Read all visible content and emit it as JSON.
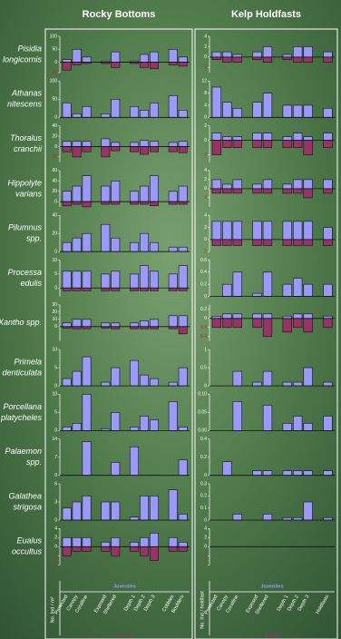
{
  "chart_data": [
    {
      "type": "bar",
      "title": "Rocky Bottoms",
      "ylabel": "No. Ind / m²",
      "series": [
        {
          "name": "Juveniles",
          "color": "#9999ff"
        },
        {
          "name": "Adults",
          "color": "#993366"
        }
      ],
      "categories": [
        "Protected",
        "Canopy",
        "Coralline",
        "Exposed",
        "Sheltered",
        "Depth 1",
        "Depth 2",
        "Depth 3",
        "Cobbles",
        "Boulders"
      ],
      "panels": [
        {
          "species": [
            "Pisidia",
            "longicornis"
          ],
          "ylim": [
            -40,
            100
          ],
          "yticks": [
            100,
            50,
            0,
            {
              "value": -40,
              "label": "40"
            }
          ],
          "values": [
            [
              10,
              50,
              20,
              5,
              40,
              5,
              30,
              40,
              50,
              20
            ],
            [
              -30,
              -10,
              -5,
              -5,
              -20,
              -5,
              -20,
              -25,
              -10,
              -15
            ]
          ]
        },
        {
          "species": [
            "Athanas",
            "nitescens"
          ],
          "ylim": [
            0,
            100
          ],
          "yticks": [
            100,
            50,
            0
          ],
          "values": [
            [
              40,
              10,
              30,
              10,
              50,
              30,
              20,
              40,
              60,
              20
            ]
          ]
        },
        {
          "species": [
            "Thoralus",
            "cranchii"
          ],
          "ylim": [
            -30,
            40
          ],
          "yticks": [
            40,
            20,
            0,
            {
              "value": -20,
              "label": "20"
            }
          ],
          "values": [
            [
              10,
              10,
              10,
              15,
              8,
              8,
              12,
              10,
              8,
              10
            ],
            [
              -10,
              -20,
              -10,
              -20,
              -8,
              -10,
              -15,
              -10,
              -10,
              -12
            ]
          ]
        },
        {
          "species": [
            "Hippolyte",
            "varians"
          ],
          "ylim": [
            -10,
            60
          ],
          "yticks": [
            60,
            40,
            20,
            0
          ],
          "values": [
            [
              20,
              30,
              50,
              30,
              40,
              20,
              30,
              50,
              20,
              30
            ],
            [
              -8,
              -5,
              -10,
              -5,
              -5,
              -5,
              -5,
              -8,
              -5,
              -5
            ]
          ]
        },
        {
          "species": [
            "Pilumnus",
            "spp."
          ],
          "ylim": [
            0,
            40
          ],
          "yticks": [
            40,
            20,
            0
          ],
          "values": [
            [
              10,
              15,
              20,
              30,
              15,
              10,
              20,
              10,
              5,
              5
            ]
          ]
        },
        {
          "species": [
            "Processa",
            "edulis"
          ],
          "ylim": [
            -3,
            10
          ],
          "yticks": [
            10,
            5,
            0
          ],
          "values": [
            [
              6,
              6,
              6,
              5,
              6,
              5,
              8,
              6,
              5,
              8
            ],
            [
              -1,
              -1,
              -1,
              -1,
              -1,
              -1,
              -1,
              -1,
              -1,
              -1
            ]
          ]
        },
        {
          "species": [
            "Xantho spp."
          ],
          "ylim": [
            -20,
            30
          ],
          "yticks": [
            30,
            20,
            10,
            0
          ],
          "values": [
            [
              5,
              10,
              10,
              5,
              5,
              5,
              8,
              10,
              15,
              15
            ],
            [
              -2,
              -3,
              -3,
              -2,
              -3,
              -3,
              -3,
              -3,
              -3,
              -10
            ]
          ]
        },
        {
          "species": [
            "Primela",
            "denticulata"
          ],
          "ylim": [
            0,
            10
          ],
          "yticks": [
            10,
            5,
            0
          ],
          "values": [
            [
              2,
              4,
              8,
              1,
              5,
              7,
              3,
              2,
              1,
              5
            ]
          ]
        },
        {
          "species": [
            "Porcellana",
            "platycheles"
          ],
          "ylim": [
            0,
            10
          ],
          "yticks": [
            10,
            5,
            0
          ],
          "values": [
            [
              1,
              2,
              10,
              0.5,
              5,
              1,
              4,
              3,
              8,
              1
            ]
          ]
        },
        {
          "species": [
            "Palaemon",
            "spp."
          ],
          "ylim": [
            0,
            14
          ],
          "yticks": [
            14,
            7,
            0
          ],
          "values": [
            [
              0,
              0,
              13,
              0,
              5,
              11,
              0,
              0,
              0,
              6
            ]
          ]
        },
        {
          "species": [
            "Galathea",
            "strigosa"
          ],
          "ylim": [
            0,
            6
          ],
          "yticks": [
            6,
            3,
            0
          ],
          "values": [
            [
              2,
              3,
              4,
              3,
              3,
              0.5,
              4,
              4,
              5,
              1
            ]
          ]
        },
        {
          "species": [
            "Eualus",
            "occultus"
          ],
          "ylim": [
            -4,
            4
          ],
          "yticks": [
            4,
            2,
            0,
            {
              "value": -2,
              "label": "2"
            },
            {
              "value": -4,
              "label": "4"
            }
          ],
          "values": [
            [
              2,
              2,
              2,
              1,
              2,
              1,
              2,
              3,
              2,
              1
            ],
            [
              -2,
              -1,
              -1,
              -1,
              -2,
              -1,
              -2,
              -3,
              -1,
              -1
            ]
          ]
        }
      ]
    },
    {
      "type": "bar",
      "title": "Kelp Holdfasts",
      "ylabel": "No. Ind / holdfast",
      "series": [
        {
          "name": "Juveniles",
          "color": "#9999ff"
        },
        {
          "name": "Adults",
          "color": "#993366"
        }
      ],
      "categories": [
        "Protected",
        "Canopy",
        "Coralline",
        "Exposed",
        "Sheltered",
        "Depth 1",
        "Depth 2",
        "Depth 3",
        "Holdfasts"
      ],
      "panels": [
        {
          "ylim": [
            -3,
            4
          ],
          "yticks": [
            4,
            2,
            0,
            {
              "value": -2,
              "label": "2"
            }
          ],
          "values": [
            [
              1,
              1,
              0.5,
              1,
              2,
              0.5,
              2,
              2,
              1
            ],
            [
              -0.5,
              -1,
              -1,
              -0.5,
              -1,
              -0.5,
              -1,
              -1,
              -1
            ]
          ]
        },
        {
          "ylim": [
            0,
            12
          ],
          "yticks": [
            12,
            8,
            4,
            0
          ],
          "values": [
            [
              10,
              5,
              3,
              5,
              8,
              4,
              4,
              4,
              3
            ]
          ]
        },
        {
          "ylim": [
            -3,
            2
          ],
          "yticks": [
            2,
            0,
            {
              "value": -2,
              "label": "2"
            }
          ],
          "values": [
            [
              1,
              0.5,
              0.5,
              1,
              1,
              0.5,
              1,
              0.5,
              1
            ],
            [
              -2,
              -1,
              -1,
              -1,
              -1,
              -1,
              -1,
              -2,
              -1
            ]
          ]
        },
        {
          "ylim": [
            -4,
            4
          ],
          "yticks": [
            4,
            2,
            0,
            {
              "value": -2,
              "label": "2"
            }
          ],
          "values": [
            [
              2,
              1,
              2,
              1,
              2,
              1,
              2,
              2,
              2
            ],
            [
              -1,
              -1,
              -1,
              -1,
              -1,
              -1,
              -1,
              -2,
              -1
            ]
          ]
        },
        {
          "ylim": [
            -2,
            4
          ],
          "yticks": [
            4,
            2,
            0,
            {
              "value": -2,
              "label": "2"
            }
          ],
          "values": [
            [
              3,
              3,
              3,
              3,
              3,
              3,
              3,
              3,
              2
            ],
            [
              -1,
              -1,
              -1,
              -1,
              -1,
              -1,
              -1,
              -1,
              -1
            ]
          ]
        },
        {
          "ylim": [
            0,
            0.6
          ],
          "yticks": [
            0.6,
            0.4,
            0.2,
            0
          ],
          "values": [
            [
              0,
              0.2,
              0.4,
              0.05,
              0.4,
              0.2,
              0.3,
              0.2,
              0.2
            ]
          ]
        },
        {
          "ylim": [
            -0.5,
            0.3
          ],
          "yticks": [
            0.2,
            0,
            {
              "value": -0.2,
              "label": "0.2"
            },
            {
              "value": -0.4,
              "label": "0.4"
            }
          ],
          "values": [
            [
              0.05,
              0.1,
              0.1,
              0.1,
              0.1,
              0.05,
              0.1,
              0.1,
              0.05
            ],
            [
              -0.2,
              -0.2,
              -0.2,
              -0.2,
              -0.4,
              -0.3,
              -0.2,
              -0.3,
              -0.2
            ]
          ]
        },
        {
          "ylim": [
            0,
            1
          ],
          "yticks": [
            1,
            0.5,
            0
          ],
          "values": [
            [
              0,
              0,
              0.4,
              0.1,
              0.4,
              0.1,
              0.1,
              0.5,
              0.1
            ]
          ]
        },
        {
          "ylim": [
            0,
            0.1
          ],
          "yticks": [
            {
              "value": 0.1,
              "label": "0.10"
            },
            0.05,
            {
              "value": 0,
              "label": "0.00"
            }
          ],
          "values": [
            [
              0,
              0,
              0.08,
              0,
              0.07,
              0.02,
              0.04,
              0.02,
              0.04
            ]
          ]
        },
        {
          "ylim": [
            0,
            0.4
          ],
          "yticks": [
            0.4,
            0.2,
            0
          ],
          "values": [
            [
              0,
              0.15,
              0,
              0.05,
              0.05,
              0.05,
              0.05,
              0.05,
              0.05
            ]
          ]
        },
        {
          "ylim": [
            0,
            0.3
          ],
          "yticks": [
            0.3,
            0.2,
            0.1,
            0
          ],
          "values": [
            [
              0,
              0,
              0.05,
              0,
              0.05,
              0.02,
              0.02,
              0.15,
              0.02
            ]
          ]
        },
        {
          "ylim": [
            -4,
            4
          ],
          "yticks": [
            4,
            2,
            0,
            {
              "value": -2,
              "label": "2"
            },
            {
              "value": -4,
              "label": "4"
            }
          ],
          "values": [
            [
              null,
              null,
              null,
              null,
              null,
              null,
              null,
              null,
              null
            ]
          ]
        }
      ]
    }
  ]
}
